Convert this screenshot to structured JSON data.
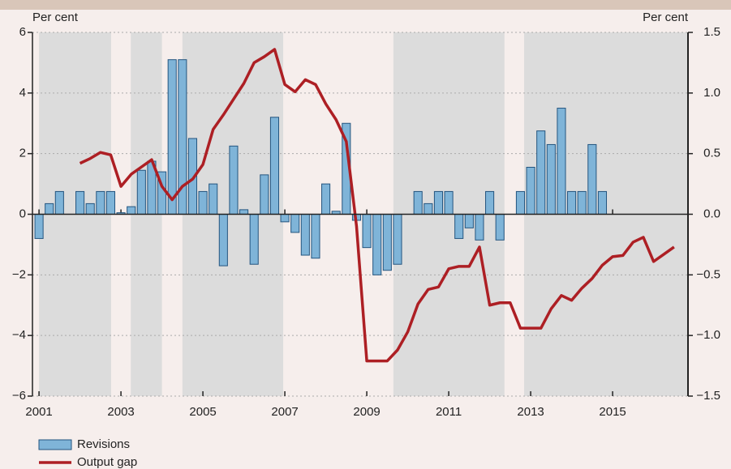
{
  "chart_data": {
    "type": "bar-line",
    "y_label": "Per cent",
    "y2_label": "Per cent",
    "xlim": [
      2000.84,
      2016.84
    ],
    "xticks": [
      2001,
      2003,
      2005,
      2007,
      2009,
      2011,
      2013,
      2015
    ],
    "ylim": [
      -6,
      6
    ],
    "yticks": [
      {
        "value": -6,
        "label": "−6"
      },
      {
        "value": -4,
        "label": "−4"
      },
      {
        "value": -2,
        "label": "−2"
      },
      0,
      2,
      4,
      6
    ],
    "y2lim": [
      -1.5,
      1.5
    ],
    "y2ticks": [
      {
        "value": -1.5,
        "label": "−1.5"
      },
      {
        "value": -1,
        "label": "−1.0"
      },
      {
        "value": -0.5,
        "label": "−0.5"
      },
      {
        "value": 0,
        "label": "0.0"
      },
      0.5,
      {
        "value": 1,
        "label": "1.0"
      },
      1.5
    ],
    "grid": true,
    "shaded_periods": [
      [
        2001,
        2002.76
      ],
      [
        2003.24,
        2004.0
      ],
      [
        2004.5,
        2006.96
      ],
      [
        2009.65,
        2012.36
      ],
      [
        2012.84,
        2016.84
      ]
    ],
    "shade_color": "#dcdcdc",
    "series": [
      {
        "name": "Revisions",
        "type": "bar",
        "color": "#7fb4d8",
        "edge": "#24557f",
        "x": [
          2001,
          2001.25,
          2001.5,
          2001.75,
          2002,
          2002.25,
          2002.5,
          2002.75,
          2003,
          2003.25,
          2003.5,
          2003.75,
          2004,
          2004.25,
          2004.5,
          2004.75,
          2005,
          2005.25,
          2005.5,
          2005.75,
          2006,
          2006.25,
          2006.5,
          2006.75,
          2007,
          2007.25,
          2007.5,
          2007.75,
          2008,
          2008.25,
          2008.5,
          2008.75,
          2009,
          2009.25,
          2009.5,
          2009.75,
          2010,
          2010.25,
          2010.5,
          2010.75,
          2011,
          2011.25,
          2011.5,
          2011.75,
          2012,
          2012.25,
          2012.5,
          2012.75,
          2013,
          2013.25,
          2013.5,
          2013.75,
          2014,
          2014.25,
          2014.5,
          2014.75
        ],
        "values": [
          -0.8,
          0.35,
          0.75,
          0,
          0.75,
          0.35,
          0.75,
          0.75,
          0.05,
          0.25,
          1.45,
          1.75,
          1.4,
          5.1,
          5.1,
          2.5,
          0.75,
          1.0,
          -1.7,
          2.25,
          0.15,
          -1.65,
          1.3,
          3.2,
          -0.25,
          -0.6,
          -1.35,
          -1.45,
          1.0,
          0.1,
          3.0,
          -0.2,
          -1.1,
          -2.0,
          -1.85,
          -1.65,
          0,
          0.75,
          0.35,
          0.75,
          0.75,
          -0.8,
          -0.45,
          -0.85,
          0.75,
          -0.85,
          0,
          0.75,
          1.55,
          2.75,
          2.3,
          3.5,
          0.75,
          0.75,
          2.3,
          0.75
        ]
      },
      {
        "name": "Output gap",
        "type": "line",
        "axis": "y2",
        "color": "#ad1f24",
        "x": [
          2002,
          2002.25,
          2002.5,
          2002.75,
          2003,
          2003.25,
          2003.5,
          2003.75,
          2004,
          2004.25,
          2004.5,
          2004.75,
          2005,
          2005.25,
          2005.5,
          2005.75,
          2006,
          2006.25,
          2006.5,
          2006.75,
          2007,
          2007.25,
          2007.5,
          2007.75,
          2008,
          2008.25,
          2008.5,
          2008.75,
          2009,
          2009.25,
          2009.5,
          2009.75,
          2010,
          2010.25,
          2010.5,
          2010.75,
          2011,
          2011.25,
          2011.5,
          2011.75,
          2012,
          2012.25,
          2012.5,
          2012.75,
          2013,
          2013.25,
          2013.5,
          2013.75,
          2014,
          2014.25,
          2014.5,
          2014.75,
          2015,
          2015.25,
          2015.5,
          2015.75,
          2016,
          2016.25,
          2016.5
        ],
        "values": [
          0.42,
          0.46,
          0.51,
          0.49,
          0.23,
          0.33,
          0.39,
          0.45,
          0.23,
          0.12,
          0.23,
          0.29,
          0.41,
          0.7,
          0.82,
          0.95,
          1.08,
          1.25,
          1.3,
          1.36,
          1.07,
          1.01,
          1.11,
          1.07,
          0.91,
          0.78,
          0.6,
          -0.1,
          -1.21,
          -1.21,
          -1.21,
          -1.12,
          -0.97,
          -0.74,
          -0.62,
          -0.6,
          -0.45,
          -0.43,
          -0.43,
          -0.27,
          -0.75,
          -0.73,
          -0.73,
          -0.94,
          -0.94,
          -0.94,
          -0.78,
          -0.67,
          -0.71,
          -0.61,
          -0.53,
          -0.42,
          -0.35,
          -0.34,
          -0.23,
          -0.19,
          -0.39,
          -0.33,
          -0.27
        ]
      }
    ]
  }
}
